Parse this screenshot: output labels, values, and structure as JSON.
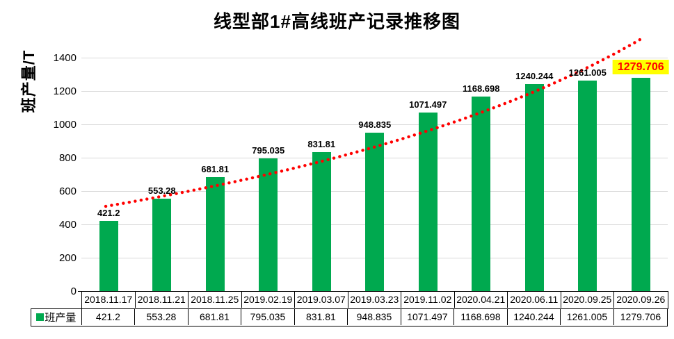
{
  "chart_data": {
    "type": "bar",
    "title": "线型部1#高线班产记录推移图",
    "ylabel": "班产量/T",
    "xlabel": "",
    "categories": [
      "2018.11.17",
      "2018.11.21",
      "2018.11.25",
      "2019.02.19",
      "2019.03.07",
      "2019.03.23",
      "2019.11.02",
      "2020.04.21",
      "2020.06.11",
      "2020.09.25",
      "2020.09.26"
    ],
    "series": [
      {
        "name": "班产量",
        "values": [
          421.2,
          553.28,
          681.81,
          795.035,
          831.81,
          948.835,
          1071.497,
          1168.698,
          1240.244,
          1261.005,
          1279.706
        ]
      }
    ],
    "data_labels": [
      "421.2",
      "553.28",
      "681.81",
      "795.035",
      "831.81",
      "948.835",
      "1071.497",
      "1168.698",
      "1240.244",
      "1261.005",
      "1279.706"
    ],
    "ylim": [
      0,
      1400
    ],
    "yticks": [
      0,
      200,
      400,
      600,
      800,
      1000,
      1200,
      1400
    ],
    "grid": true,
    "legend_position": "table-left",
    "data_table_shown": true,
    "bar_color": "#00A94F",
    "gridline_color": "#D9D9D9",
    "trendline": {
      "type": "curved",
      "style": "dotted",
      "color": "#FF0000"
    },
    "last_label_highlight": {
      "background": "#FFFF00",
      "color": "#FF0000"
    }
  }
}
